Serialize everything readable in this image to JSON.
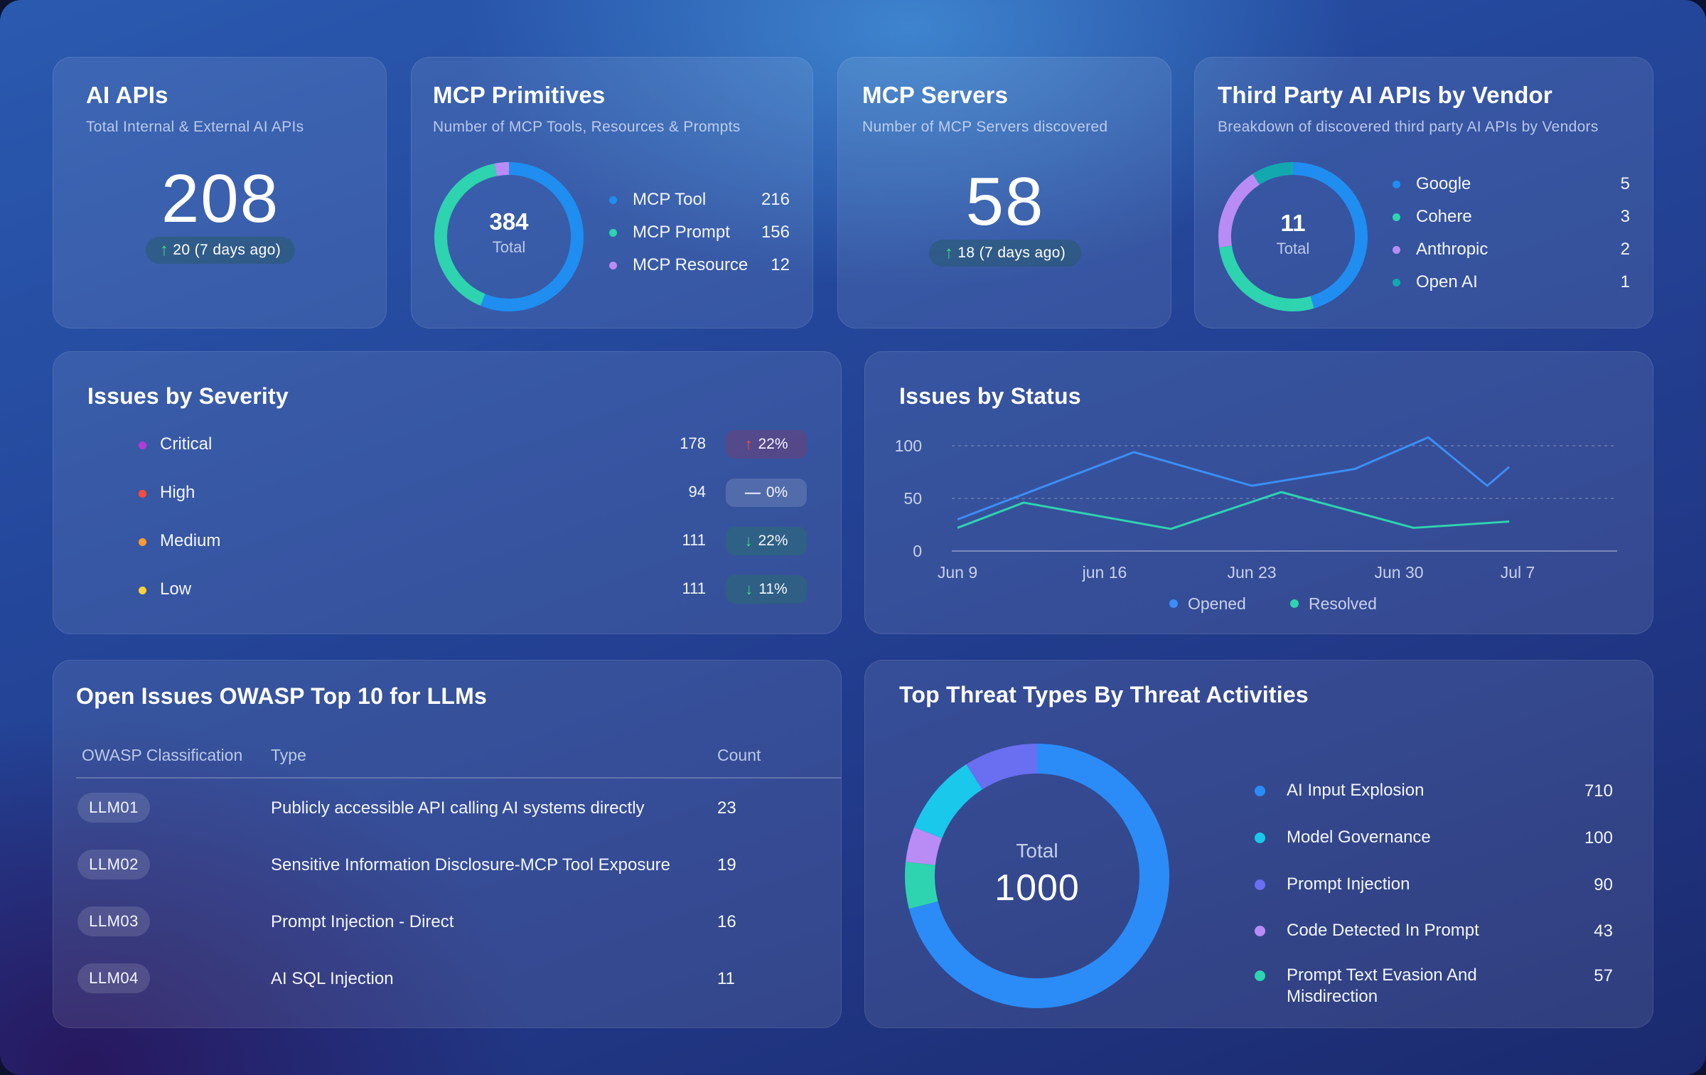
{
  "ai_apis": {
    "title": "AI APIs",
    "subtitle": "Total Internal & External AI APIs",
    "value": "208",
    "delta": "20 (7 days ago)"
  },
  "mcp_primitives": {
    "title": "MCP Primitives",
    "subtitle": "Number of MCP Tools, Resources & Prompts",
    "total_value": "384",
    "total_label": "Total",
    "items": [
      {
        "label": "MCP Tool",
        "value": 216,
        "color": "#1f8ef0"
      },
      {
        "label": "MCP Prompt",
        "value": 156,
        "color": "#2ed3b0"
      },
      {
        "label": "MCP Resource",
        "value": 12,
        "color": "#b98cf5"
      }
    ]
  },
  "mcp_servers": {
    "title": "MCP Servers",
    "subtitle": "Number of MCP Servers discovered",
    "value": "58",
    "delta": "18 (7 days ago)"
  },
  "vendors": {
    "title": "Third Party AI APIs by Vendor",
    "subtitle": "Breakdown of discovered third party AI APIs by Vendors",
    "total_value": "11",
    "total_label": "Total",
    "items": [
      {
        "label": "Google",
        "value": 5,
        "color": "#1f8ef0"
      },
      {
        "label": "Cohere",
        "value": 3,
        "color": "#2ed3b0"
      },
      {
        "label": "Anthropic",
        "value": 2,
        "color": "#b98cf5"
      },
      {
        "label": "Open AI",
        "value": 1,
        "color": "#13a8b0"
      }
    ]
  },
  "severity": {
    "title": "Issues by Severity",
    "rows": [
      {
        "label": "Critical",
        "count": "178",
        "change": "22%",
        "trend": "up",
        "color": "#b43ad6"
      },
      {
        "label": "High",
        "count": "94",
        "change": "0%",
        "trend": "flat",
        "color": "#ff4b3a"
      },
      {
        "label": "Medium",
        "count": "111",
        "change": "22%",
        "trend": "down",
        "color": "#ff9a2e"
      },
      {
        "label": "Low",
        "count": "111",
        "change": "11%",
        "trend": "down",
        "color": "#ffd23a"
      }
    ]
  },
  "status_chart": {
    "title": "Issues by Status",
    "chart_data": {
      "type": "line",
      "x": [
        "Jun 9",
        "jun 16",
        "Jun 23",
        "Jun 30",
        "Jul 7"
      ],
      "ylim": [
        0,
        100
      ],
      "yticks": [
        0,
        50,
        100
      ],
      "series": [
        {
          "name": "Opened",
          "color": "#3b8ef5",
          "points": [
            [
              0,
              30
            ],
            [
              1.2,
              94
            ],
            [
              2.0,
              62
            ],
            [
              2.7,
              78
            ],
            [
              3.2,
              108
            ],
            [
              3.6,
              62
            ],
            [
              3.75,
              80
            ]
          ]
        },
        {
          "name": "Resolved",
          "color": "#2ed3b0",
          "points": [
            [
              0,
              22
            ],
            [
              0.45,
              46
            ],
            [
              1.45,
              21
            ],
            [
              2.2,
              56
            ],
            [
              3.1,
              22
            ],
            [
              3.75,
              28
            ]
          ]
        }
      ]
    }
  },
  "owasp": {
    "title": "Open Issues OWASP Top 10 for LLMs",
    "headers": {
      "classification": "OWASP Classification",
      "type": "Type",
      "count": "Count"
    },
    "rows": [
      {
        "id": "LLM01",
        "type": "Publicly accessible API calling AI systems directly",
        "count": "23"
      },
      {
        "id": "LLM02",
        "type": "Sensitive Information Disclosure-MCP Tool Exposure",
        "count": "19"
      },
      {
        "id": "LLM03",
        "type": "Prompt Injection - Direct",
        "count": "16"
      },
      {
        "id": "LLM04",
        "type": "AI SQL Injection",
        "count": "11"
      }
    ]
  },
  "threats": {
    "title": "Top Threat Types By Threat Activities",
    "total_label": "Total",
    "total_value": "1000",
    "items": [
      {
        "label": "AI Input Explosion",
        "value": 710,
        "color": "#2b8cf7"
      },
      {
        "label": "Model Governance",
        "value": 100,
        "color": "#19c8ea"
      },
      {
        "label": "Prompt Injection",
        "value": 90,
        "color": "#6a6ef0"
      },
      {
        "label": "Code Detected In Prompt",
        "value": 43,
        "color": "#b98cf5"
      },
      {
        "label": "Prompt Text Evasion And Misdirection",
        "value": 57,
        "color": "#2ed3b0"
      }
    ]
  }
}
